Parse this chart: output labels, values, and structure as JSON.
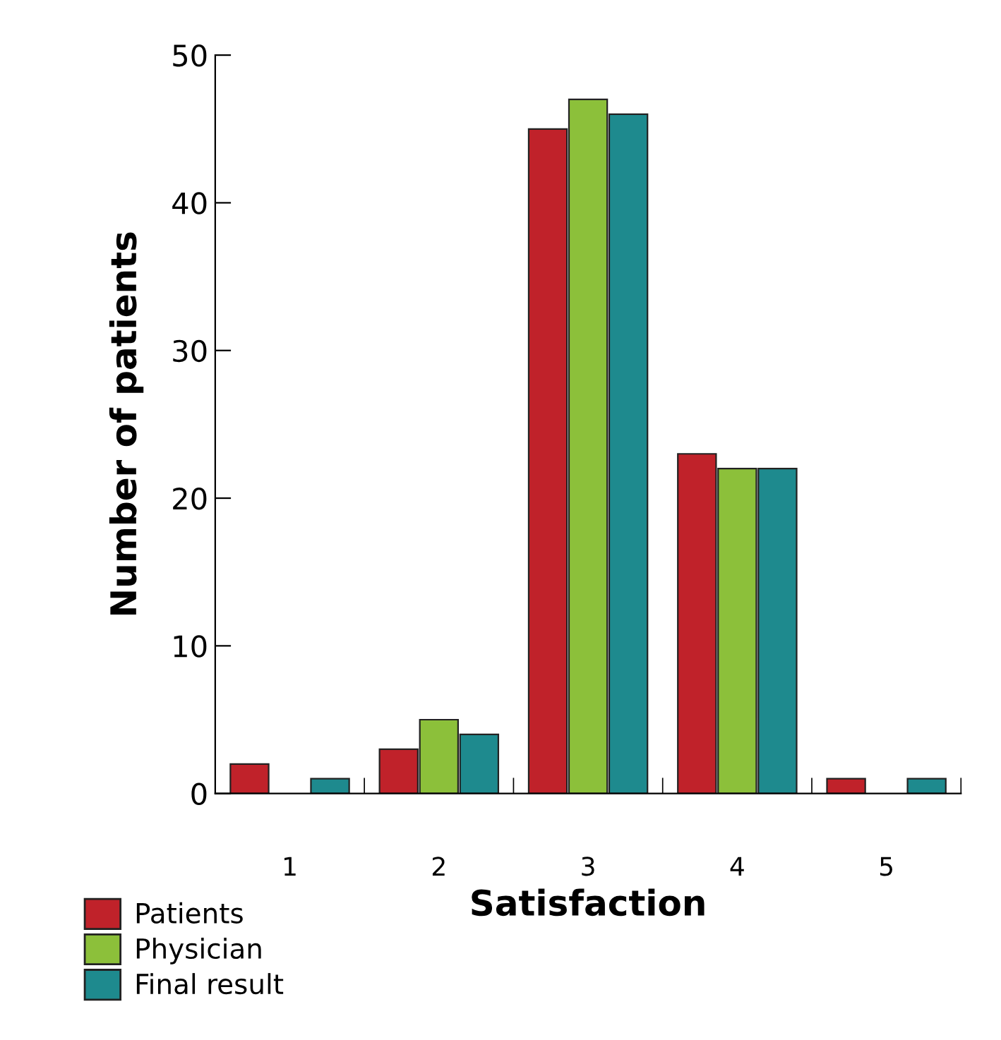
{
  "chart_data": {
    "type": "bar",
    "xlabel": "Satisfaction",
    "ylabel": "Number of patients",
    "categories": [
      "1",
      "2",
      "3",
      "4",
      "5"
    ],
    "series": [
      {
        "name": "Patients",
        "color": "#c0222a",
        "values": [
          2,
          3,
          45,
          23,
          1
        ]
      },
      {
        "name": "Physician",
        "color": "#8cc03a",
        "values": [
          0,
          5,
          47,
          22,
          0
        ]
      },
      {
        "name": "Final result",
        "color": "#1e8a8e",
        "values": [
          1,
          4,
          46,
          22,
          1
        ]
      }
    ],
    "ylim": [
      0,
      50
    ],
    "yticks": [
      0,
      10,
      20,
      30,
      40,
      50
    ],
    "grid": false,
    "legend": "bottom left"
  }
}
